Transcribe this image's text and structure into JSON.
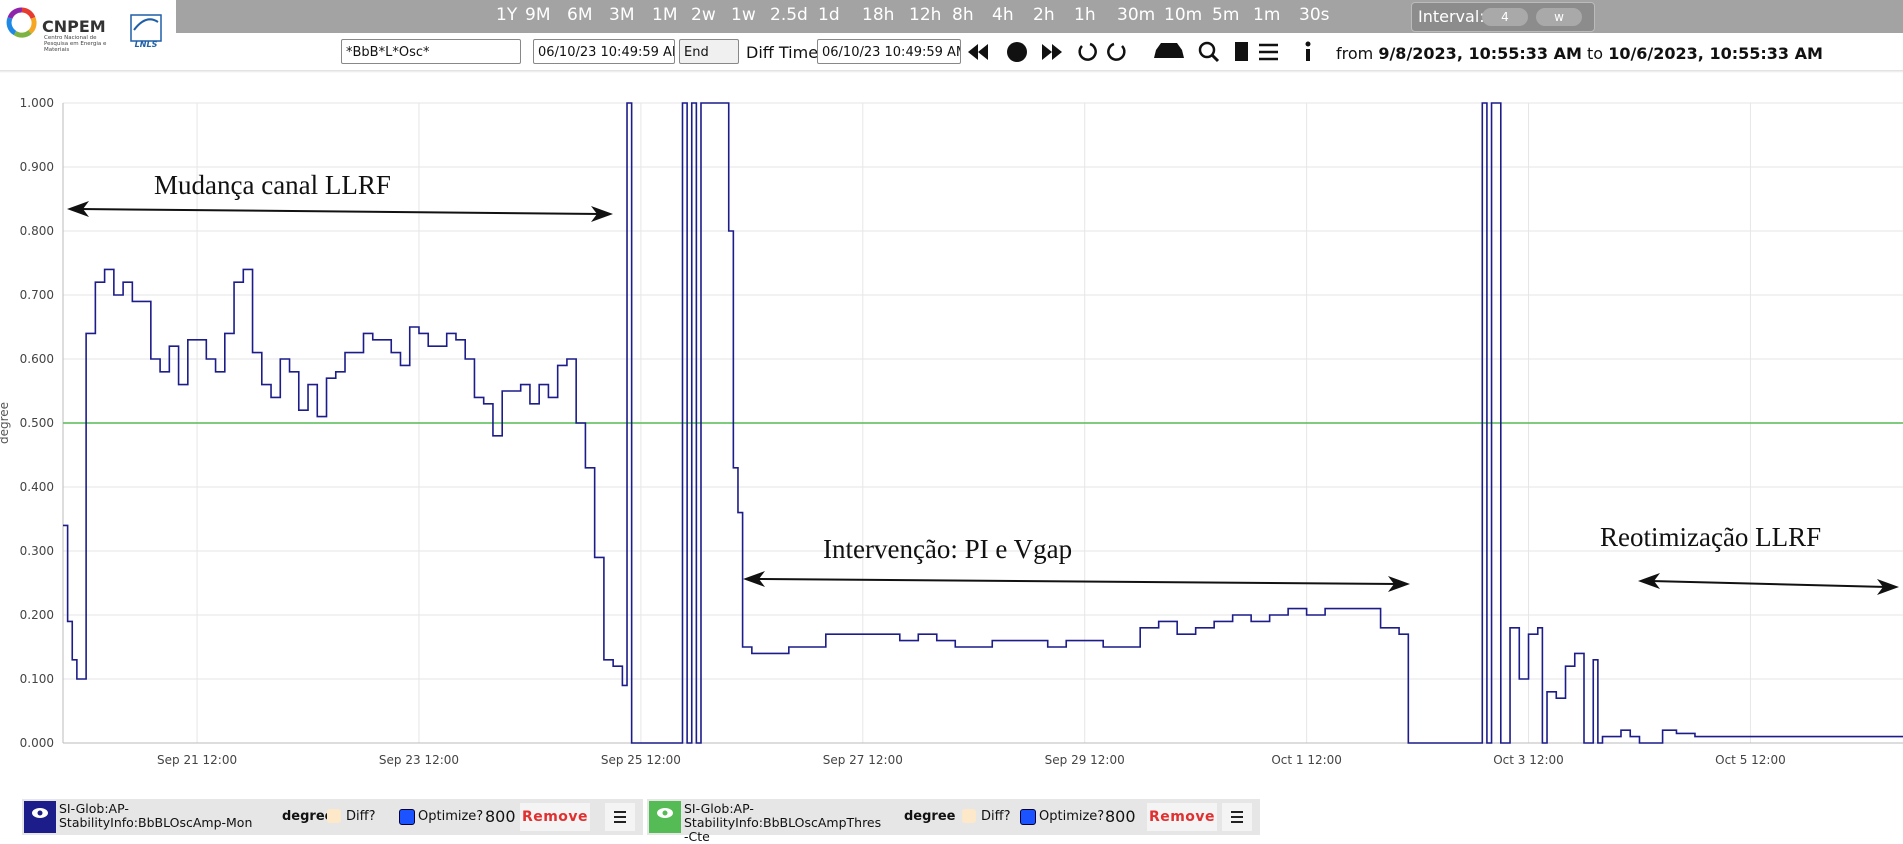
{
  "logo": {
    "name": "CNPEM",
    "subtitle": "Centro Nacional de Pesquisa em Energia e Materiais",
    "lab": "LNLS"
  },
  "toolbar": {
    "zoom": [
      "1Y",
      "9M",
      "6M",
      "3M",
      "1M",
      "2w",
      "1w",
      "2.5d",
      "1d",
      "18h",
      "12h",
      "8h",
      "4h",
      "2h",
      "1h",
      "30m",
      "10m",
      "5m",
      "1m",
      "30s"
    ],
    "interval_label": "Interval:",
    "interval_value": "4",
    "interval_unit": "w",
    "search": "*BbB*L*Osc*",
    "time": "06/10/23 10:49:59 AM",
    "end": "End",
    "diff_label": "Diff Time:",
    "diff_time": "06/10/23 10:49:59 AM",
    "from_label": "from",
    "from": "9/8/2023, 10:55:33 AM",
    "to_label": "to",
    "to": "10/6/2023, 10:55:33 AM"
  },
  "chart_data": {
    "type": "line",
    "step": true,
    "y_label": "degree",
    "annotations": [
      "Mudança canal LLRF",
      "Intervenção: PI e Vgap",
      "Reotimização LLRF"
    ],
    "xlim": [
      "Sep 20 07:00",
      "Oct 6 21:00"
    ],
    "xticks": [
      "Sep 21 12:00",
      "Sep 23 12:00",
      "Sep 25 12:00",
      "Sep 27 12:00",
      "Sep 29 12:00",
      "Oct 1 12:00",
      "Oct 3 12:00",
      "Oct 5 12:00"
    ],
    "ylim": [
      0,
      1
    ],
    "yticks": [
      {
        "value": 0,
        "label": "0.000"
      },
      {
        "value": 0.1,
        "label": "0.100"
      },
      {
        "value": 0.2,
        "label": "0.200"
      },
      {
        "value": 0.3,
        "label": "0.300"
      },
      {
        "value": 0.4,
        "label": "0.400"
      },
      {
        "value": 0.5,
        "label": "0.500"
      },
      {
        "value": 0.6,
        "label": "0.600"
      },
      {
        "value": 0.7,
        "label": "0.700"
      },
      {
        "value": 0.8,
        "label": "0.800"
      },
      {
        "value": 0.9,
        "label": "0.900"
      },
      {
        "value": 1,
        "label": "1.000"
      }
    ],
    "grid": true,
    "series": [
      {
        "name": "SI-Glob:AP-StabilityInfo:BbBLOscAmp-Mon",
        "color": "#1c1c8a",
        "x": [
          "Sep 20 07:00",
          "Sep 20 08:00",
          "Sep 20 09:00",
          "Sep 20 10:00",
          "Sep 20 12:00",
          "Sep 20 14:00",
          "Sep 20 16:00",
          "Sep 20 18:00",
          "Sep 20 20:00",
          "Sep 20 22:00",
          "Sep 21 00:00",
          "Sep 21 02:00",
          "Sep 21 04:00",
          "Sep 21 06:00",
          "Sep 21 08:00",
          "Sep 21 10:00",
          "Sep 21 12:00",
          "Sep 21 14:00",
          "Sep 21 16:00",
          "Sep 21 18:00",
          "Sep 21 20:00",
          "Sep 21 22:00",
          "Sep 22 00:00",
          "Sep 22 02:00",
          "Sep 22 04:00",
          "Sep 22 06:00",
          "Sep 22 08:00",
          "Sep 22 10:00",
          "Sep 22 12:00",
          "Sep 22 14:00",
          "Sep 22 16:00",
          "Sep 22 18:00",
          "Sep 22 20:00",
          "Sep 22 22:00",
          "Sep 23 00:00",
          "Sep 23 02:00",
          "Sep 23 04:00",
          "Sep 23 06:00",
          "Sep 23 08:00",
          "Sep 23 10:00",
          "Sep 23 12:00",
          "Sep 23 14:00",
          "Sep 23 16:00",
          "Sep 23 18:00",
          "Sep 23 20:00",
          "Sep 23 22:00",
          "Sep 24 00:00",
          "Sep 24 02:00",
          "Sep 24 04:00",
          "Sep 24 06:00",
          "Sep 24 08:00",
          "Sep 24 10:00",
          "Sep 24 12:00",
          "Sep 24 14:00",
          "Sep 24 16:00",
          "Sep 24 18:00",
          "Sep 24 20:00",
          "Sep 24 22:00",
          "Sep 25 00:00",
          "Sep 25 02:00",
          "Sep 25 04:00",
          "Sep 25 06:00",
          "Sep 25 08:00",
          "Sep 25 09:00",
          "Sep 25 10:00",
          "Sep 25 21:00",
          "Sep 25 22:00",
          "Sep 25 23:00",
          "Sep 26 00:00",
          "Sep 26 01:00",
          "Sep 26 02:00",
          "Sep 26 07:00",
          "Sep 26 08:00",
          "Sep 26 09:00",
          "Sep 26 10:00",
          "Sep 26 12:00",
          "Sep 26 16:00",
          "Sep 26 20:00",
          "Sep 27 00:00",
          "Sep 27 04:00",
          "Sep 27 08:00",
          "Sep 27 12:00",
          "Sep 27 16:00",
          "Sep 27 20:00",
          "Sep 28 00:00",
          "Sep 28 04:00",
          "Sep 28 08:00",
          "Sep 28 12:00",
          "Sep 28 16:00",
          "Sep 28 20:00",
          "Sep 29 00:00",
          "Sep 29 04:00",
          "Sep 29 08:00",
          "Sep 29 12:00",
          "Sep 29 16:00",
          "Sep 29 20:00",
          "Sep 30 00:00",
          "Sep 30 04:00",
          "Sep 30 08:00",
          "Sep 30 12:00",
          "Sep 30 16:00",
          "Sep 30 20:00",
          "Oct 1 00:00",
          "Oct 1 04:00",
          "Oct 1 08:00",
          "Oct 1 12:00",
          "Oct 1 16:00",
          "Oct 1 20:00",
          "Oct 2 00:00",
          "Oct 2 04:00",
          "Oct 2 08:00",
          "Oct 2 10:00",
          "Oct 3 02:00",
          "Oct 3 03:00",
          "Oct 3 04:00",
          "Oct 3 06:00",
          "Oct 3 08:00",
          "Oct 3 10:00",
          "Oct 3 12:00",
          "Oct 3 14:00",
          "Oct 3 15:00",
          "Oct 3 16:00",
          "Oct 3 18:00",
          "Oct 3 20:00",
          "Oct 3 22:00",
          "Oct 4 00:00",
          "Oct 4 02:00",
          "Oct 4 03:00",
          "Oct 4 04:00",
          "Oct 4 08:00",
          "Oct 4 10:00",
          "Oct 4 12:00",
          "Oct 4 17:00",
          "Oct 4 20:00",
          "Oct 5 00:00",
          "Oct 5 12:00",
          "Oct 6 00:00",
          "Oct 6 12:00",
          "Oct 6 21:00"
        ],
        "values": [
          0.34,
          0.19,
          0.13,
          0.1,
          0.64,
          0.72,
          0.74,
          0.7,
          0.72,
          0.69,
          0.69,
          0.6,
          0.58,
          0.62,
          0.56,
          0.63,
          0.63,
          0.6,
          0.58,
          0.64,
          0.72,
          0.74,
          0.61,
          0.56,
          0.54,
          0.6,
          0.58,
          0.52,
          0.56,
          0.51,
          0.57,
          0.58,
          0.61,
          0.61,
          0.64,
          0.63,
          0.63,
          0.61,
          0.59,
          0.65,
          0.64,
          0.62,
          0.62,
          0.64,
          0.63,
          0.6,
          0.54,
          0.53,
          0.48,
          0.55,
          0.55,
          0.56,
          0.53,
          0.56,
          0.54,
          0.59,
          0.6,
          0.5,
          0.43,
          0.29,
          0.13,
          0.12,
          0.09,
          1,
          0,
          1,
          0,
          1,
          0,
          1,
          1,
          0.8,
          0.43,
          0.36,
          0.15,
          0.14,
          0.14,
          0.15,
          0.15,
          0.17,
          0.17,
          0.17,
          0.17,
          0.16,
          0.17,
          0.16,
          0.15,
          0.15,
          0.16,
          0.16,
          0.16,
          0.15,
          0.16,
          0.16,
          0.15,
          0.15,
          0.18,
          0.19,
          0.17,
          0.18,
          0.19,
          0.2,
          0.19,
          0.2,
          0.21,
          0.2,
          0.21,
          0.21,
          0.21,
          0.18,
          0.17,
          0,
          1,
          0,
          1,
          0,
          0.18,
          0.1,
          0.17,
          0.18,
          0,
          0.08,
          0.07,
          0.12,
          0.14,
          0,
          0.13,
          0,
          0.01,
          0.02,
          0.01,
          0,
          0.02,
          0.015,
          0.01,
          0.01,
          0.01,
          0.01,
          0.01
        ]
      },
      {
        "name": "SI-Glob:AP-StabilityInfo:BbBLOscAmpThres-Cte",
        "color": "#55bb55",
        "x": [
          "Sep 20 07:00",
          "Oct 6 21:00"
        ],
        "values": [
          0.5,
          0.5
        ]
      }
    ]
  },
  "legend_controls": [
    {
      "unit": "degree",
      "diff": "Diff?",
      "optimize": "Optimize?",
      "points": 800,
      "remove": "Remove"
    },
    {
      "unit": "degree",
      "diff": "Diff?",
      "optimize": "Optimize?",
      "points": 800,
      "remove": "Remove"
    }
  ]
}
